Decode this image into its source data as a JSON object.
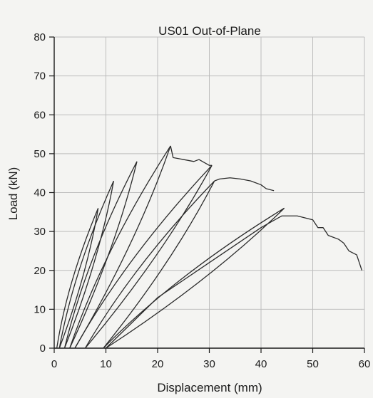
{
  "chart_data": {
    "type": "line",
    "title": "US01 Out-of-Plane",
    "xlabel": "Displacement (mm)",
    "ylabel": "Load (kN)",
    "xlim": [
      0,
      60
    ],
    "ylim": [
      0,
      80
    ],
    "x_ticks": [
      0,
      10,
      20,
      30,
      40,
      50,
      60
    ],
    "y_ticks": [
      0,
      10,
      20,
      30,
      40,
      50,
      60,
      70,
      80
    ],
    "grid": true,
    "colors": {
      "curve": "#2b2b2b",
      "grid": "#bdbdbd",
      "axis": "#1a1a1a"
    },
    "series": [
      {
        "type": "hysteresis-loops",
        "loops": [
          {
            "start": [
              0.5,
              0
            ],
            "peak": [
              8.5,
              36
            ],
            "residual": [
              1.0,
              0
            ]
          },
          {
            "start": [
              1.0,
              0
            ],
            "peak": [
              11.5,
              43
            ],
            "residual": [
              2.0,
              0
            ]
          },
          {
            "start": [
              2.0,
              0
            ],
            "peak": [
              16.0,
              48
            ],
            "residual": [
              3.0,
              0
            ]
          },
          {
            "start": [
              3.0,
              0
            ],
            "peak": [
              22.5,
              52
            ],
            "residual": [
              4.0,
              0
            ]
          },
          {
            "start": [
              4.0,
              0
            ],
            "peak": [
              30.5,
              47
            ],
            "residual": [
              6.0,
              0
            ]
          },
          {
            "start": [
              6.0,
              0
            ],
            "peak": [
              31.0,
              43
            ],
            "residual": [
              9.5,
              0
            ]
          },
          {
            "start": [
              9.5,
              0
            ],
            "peak": [
              44.5,
              36
            ],
            "residual": [
              10.0,
              0
            ]
          }
        ]
      },
      {
        "type": "plateau",
        "points": [
          [
            22.5,
            52
          ],
          [
            23,
            49
          ],
          [
            25,
            48.5
          ],
          [
            27,
            48
          ],
          [
            28,
            48.5
          ],
          [
            30,
            47
          ],
          [
            30.5,
            47
          ]
        ]
      },
      {
        "type": "plateau",
        "points": [
          [
            31,
            43
          ],
          [
            32,
            43.5
          ],
          [
            34,
            43.8
          ],
          [
            36,
            43.5
          ],
          [
            38,
            43
          ],
          [
            40,
            42
          ],
          [
            41,
            41
          ],
          [
            42.5,
            40.5
          ]
        ]
      },
      {
        "type": "envelope",
        "points": [
          [
            10,
            0
          ],
          [
            20,
            13
          ],
          [
            30,
            22
          ],
          [
            40,
            31
          ],
          [
            44,
            34
          ],
          [
            47,
            34
          ],
          [
            50,
            33
          ],
          [
            51,
            31
          ],
          [
            52,
            31
          ],
          [
            53,
            29
          ],
          [
            55,
            28
          ],
          [
            56,
            27
          ],
          [
            57,
            25
          ],
          [
            58.5,
            24
          ],
          [
            59,
            22
          ],
          [
            59.5,
            20
          ]
        ]
      }
    ]
  }
}
